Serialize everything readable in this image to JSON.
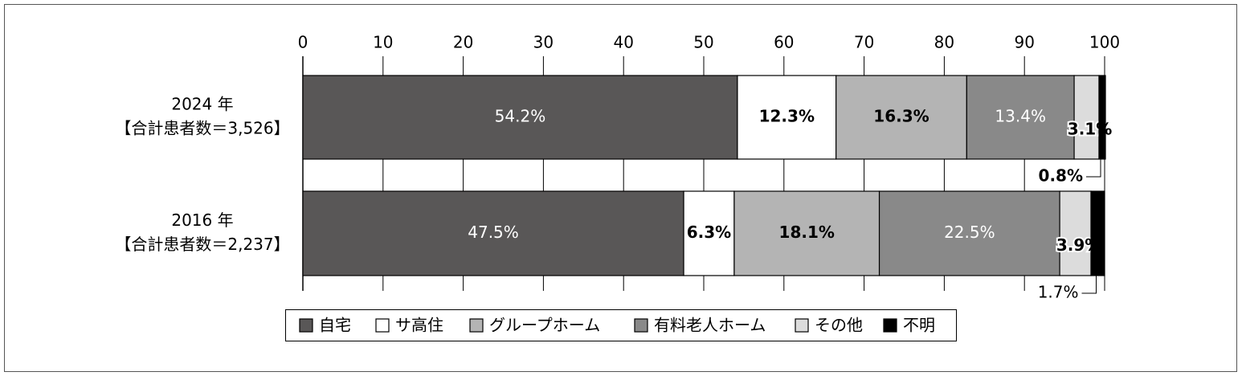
{
  "chart_data": {
    "type": "stacked-bar-horizontal",
    "categories": [
      [
        "2024 年",
        "【合計患者数＝3,526】"
      ],
      [
        "2016 年",
        "【合計患者数＝2,237】"
      ]
    ],
    "series": [
      {
        "name": "自宅",
        "color": "#595757",
        "values": [
          54.2,
          47.5
        ],
        "value_labels": [
          "54.2%",
          "47.5%"
        ]
      },
      {
        "name": "サ高住",
        "color": "#ffffff",
        "values": [
          12.3,
          6.3
        ],
        "value_labels": [
          "12.3%",
          "6.3%"
        ]
      },
      {
        "name": "グループホーム",
        "color": "#b4b4b4",
        "values": [
          16.3,
          18.1
        ],
        "value_labels": [
          "16.3%",
          "18.1%"
        ]
      },
      {
        "name": "有料老人ホーム",
        "color": "#898989",
        "values": [
          13.4,
          22.5
        ],
        "value_labels": [
          "13.4%",
          "22.5%"
        ]
      },
      {
        "name": "その他",
        "color": "#dcdcdc",
        "values": [
          3.1,
          3.9
        ],
        "value_labels": [
          "3.1%",
          "3.9%"
        ]
      },
      {
        "name": "不明",
        "color": "#000000",
        "values": [
          0.8,
          1.7
        ],
        "value_labels": [
          "0.8%",
          "1.7%"
        ]
      }
    ],
    "xlim": [
      0,
      100
    ],
    "xticks": [
      0,
      10,
      20,
      30,
      40,
      50,
      60,
      70,
      80,
      90,
      100
    ],
    "grid": true
  }
}
